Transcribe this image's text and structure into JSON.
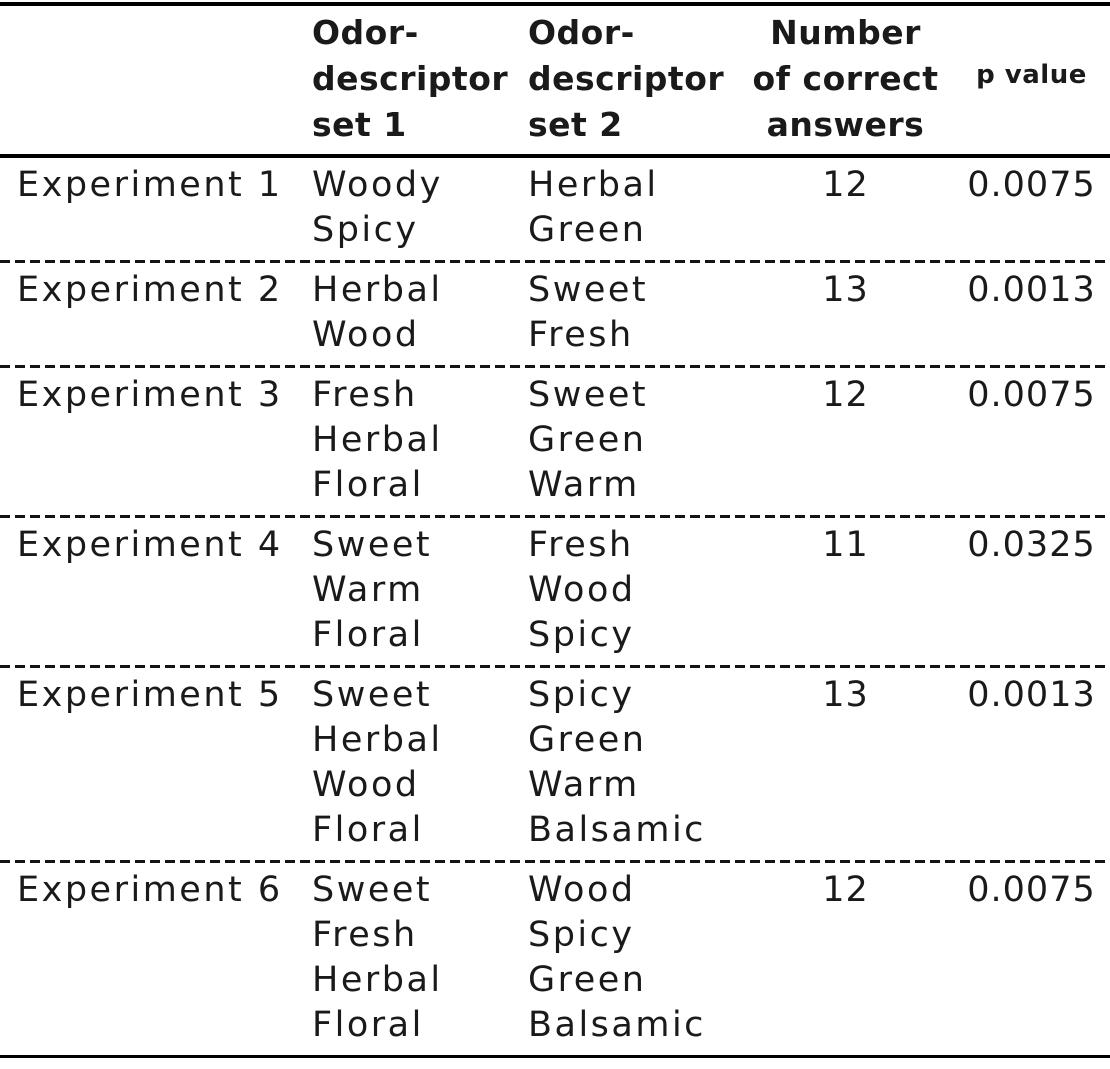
{
  "table": {
    "headers": {
      "experiment": "",
      "set1": "Odor-\ndescriptor\nset 1",
      "set2": "Odor-\ndescriptor\nset 2",
      "correct": "Number\nof correct\nanswers",
      "p": "p value"
    },
    "rows": [
      {
        "experiment": "Experiment 1",
        "set1": [
          "Woody",
          "Spicy"
        ],
        "set2": [
          "Herbal",
          "Green"
        ],
        "correct": "12",
        "p": "0.0075"
      },
      {
        "experiment": "Experiment 2",
        "set1": [
          "Herbal",
          "Wood"
        ],
        "set2": [
          "Sweet",
          "Fresh"
        ],
        "correct": "13",
        "p": "0.0013"
      },
      {
        "experiment": "Experiment 3",
        "set1": [
          "Fresh",
          "Herbal",
          "Floral"
        ],
        "set2": [
          "Sweet",
          "Green",
          "Warm"
        ],
        "correct": "12",
        "p": "0.0075"
      },
      {
        "experiment": "Experiment 4",
        "set1": [
          "Sweet",
          "Warm",
          "Floral"
        ],
        "set2": [
          "Fresh",
          "Wood",
          "Spicy"
        ],
        "correct": "11",
        "p": "0.0325"
      },
      {
        "experiment": "Experiment 5",
        "set1": [
          "Sweet",
          "Herbal",
          "Wood",
          "Floral"
        ],
        "set2": [
          "Spicy",
          "Green",
          "Warm",
          "Balsamic"
        ],
        "correct": "13",
        "p": "0.0013"
      },
      {
        "experiment": "Experiment 6",
        "set1": [
          "Sweet",
          "Fresh",
          "Herbal",
          "Floral"
        ],
        "set2": [
          "Wood",
          "Spicy",
          "Green",
          "Balsamic"
        ],
        "correct": "12",
        "p": "0.0075"
      }
    ],
    "colors": {
      "text": "#1a1a1a",
      "rule": "#000000",
      "background": "#ffffff"
    }
  }
}
